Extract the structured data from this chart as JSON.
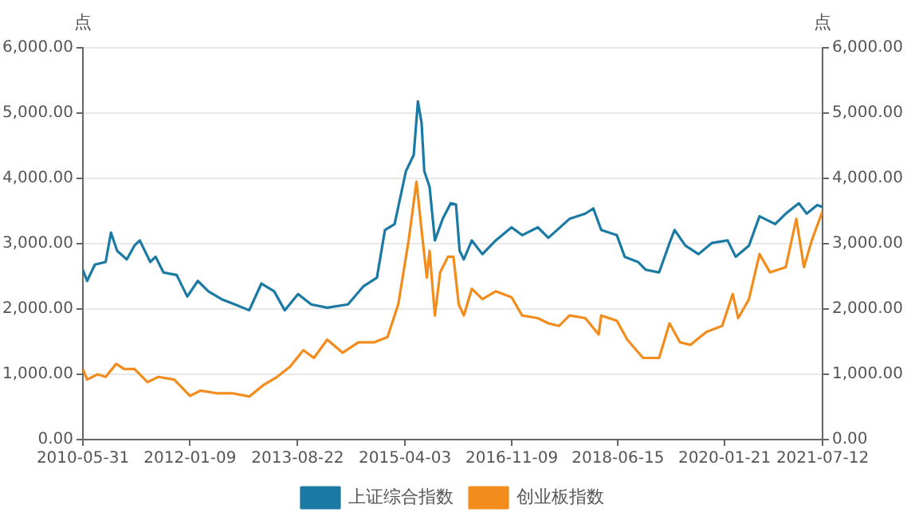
{
  "chart_data": {
    "type": "line",
    "ylabel": "点",
    "y2label": "点",
    "xlim": [
      "2010-05-31",
      "2021-07-12"
    ],
    "xticks": [
      "2010-05-31",
      "2012-01-09",
      "2013-08-22",
      "2015-04-03",
      "2016-11-09",
      "2018-06-15",
      "2020-01-21",
      "2021-07-12"
    ],
    "ylim": [
      0,
      6000
    ],
    "yticks": [
      {
        "value": 0,
        "label": "0.00"
      },
      {
        "value": 1000,
        "label": "1,000.00"
      },
      {
        "value": 2000,
        "label": "2,000.00"
      },
      {
        "value": 3000,
        "label": "3,000.00"
      },
      {
        "value": 4000,
        "label": "4,000.00"
      },
      {
        "value": 5000,
        "label": "5,000.00"
      },
      {
        "value": 6000,
        "label": "6,000.00"
      }
    ],
    "y2lim": [
      0,
      6000
    ],
    "y2ticks": [
      {
        "value": 0,
        "label": "0.00"
      },
      {
        "value": 1000,
        "label": "1,000.00"
      },
      {
        "value": 2000,
        "label": "2,000.00"
      },
      {
        "value": 3000,
        "label": "3,000.00"
      },
      {
        "value": 4000,
        "label": "4,000.00"
      },
      {
        "value": 5000,
        "label": "5,000.00"
      },
      {
        "value": 6000,
        "label": "6,000.00"
      }
    ],
    "grid": "y",
    "legend": "bottom",
    "marker": "none",
    "line_style": "solid",
    "series": [
      {
        "name": "上证综合指数",
        "color": "#1a7aa3",
        "x": [
          "2010-05-31",
          "2010-06-23",
          "2010-08-05",
          "2010-10-03",
          "2010-11-01",
          "2010-12-05",
          "2011-01-27",
          "2011-03-10",
          "2011-04-08",
          "2011-06-05",
          "2011-07-04",
          "2011-08-16",
          "2011-10-28",
          "2011-12-25",
          "2012-02-21",
          "2012-04-19",
          "2012-06-30",
          "2012-09-11",
          "2012-11-29",
          "2013-02-04",
          "2013-04-15",
          "2013-06-12",
          "2013-08-24",
          "2013-11-04",
          "2014-01-31",
          "2014-05-25",
          "2014-08-19",
          "2014-10-31",
          "2014-12-14",
          "2015-02-05",
          "2015-04-08",
          "2015-05-21",
          "2015-06-13",
          "2015-07-03",
          "2015-07-18",
          "2015-08-16",
          "2015-09-14",
          "2015-10-27",
          "2015-12-10",
          "2016-01-08",
          "2016-01-28",
          "2016-02-20",
          "2016-04-04",
          "2016-06-01",
          "2016-08-13",
          "2016-11-08",
          "2017-01-05",
          "2017-04-01",
          "2017-05-29",
          "2017-09-22",
          "2017-12-18",
          "2018-01-31",
          "2018-03-15",
          "2018-06-09",
          "2018-07-22",
          "2018-10-03",
          "2018-11-15",
          "2019-01-27",
          "2019-03-25",
          "2019-04-22",
          "2019-06-20",
          "2019-08-31",
          "2019-11-12",
          "2020-02-07",
          "2020-03-22",
          "2020-06-03",
          "2020-07-31",
          "2020-10-25",
          "2020-12-22",
          "2021-03-04",
          "2021-04-16",
          "2021-06-13",
          "2021-07-12"
        ],
        "values": [
          2600,
          2430,
          2680,
          2720,
          3170,
          2890,
          2760,
          2970,
          3050,
          2720,
          2800,
          2560,
          2520,
          2190,
          2430,
          2270,
          2150,
          2070,
          1980,
          2390,
          2270,
          1980,
          2230,
          2070,
          2020,
          2070,
          2350,
          2480,
          3210,
          3300,
          4110,
          4360,
          5180,
          4850,
          4110,
          3870,
          3050,
          3380,
          3620,
          3600,
          2890,
          2760,
          3050,
          2840,
          3050,
          3250,
          3130,
          3250,
          3090,
          3380,
          3460,
          3540,
          3210,
          3130,
          2800,
          2720,
          2600,
          2560,
          3010,
          3210,
          2970,
          2840,
          3010,
          3050,
          2800,
          2970,
          3420,
          3300,
          3460,
          3620,
          3460,
          3590,
          3560
        ]
      },
      {
        "name": "创业板指数",
        "color": "#f28c1c",
        "x": [
          "2010-05-31",
          "2010-06-23",
          "2010-08-20",
          "2010-10-03",
          "2010-11-30",
          "2011-01-12",
          "2011-03-10",
          "2011-05-21",
          "2011-07-19",
          "2011-10-14",
          "2012-01-09",
          "2012-03-07",
          "2012-06-01",
          "2012-08-27",
          "2012-11-29",
          "2013-02-18",
          "2013-05-01",
          "2013-07-12",
          "2013-09-22",
          "2013-11-19",
          "2014-01-31",
          "2014-04-26",
          "2014-07-21",
          "2014-10-17",
          "2014-12-28",
          "2015-02-25",
          "2015-04-23",
          "2015-06-05",
          "2015-07-03",
          "2015-08-01",
          "2015-08-16",
          "2015-09-14",
          "2015-10-13",
          "2015-11-25",
          "2015-12-25",
          "2016-01-23",
          "2016-02-20",
          "2016-04-04",
          "2016-06-01",
          "2016-08-13",
          "2016-11-08",
          "2017-01-05",
          "2017-04-01",
          "2017-05-29",
          "2017-07-26",
          "2017-09-22",
          "2017-12-18",
          "2018-03-01",
          "2018-03-15",
          "2018-06-09",
          "2018-08-05",
          "2018-10-31",
          "2019-01-27",
          "2019-03-25",
          "2019-05-21",
          "2019-07-18",
          "2019-10-14",
          "2020-01-08",
          "2020-03-06",
          "2020-04-05",
          "2020-06-03",
          "2020-07-31",
          "2020-09-27",
          "2020-12-22",
          "2021-02-18",
          "2021-04-01",
          "2021-05-14",
          "2021-07-12"
        ],
        "values": [
          1080,
          920,
          1000,
          960,
          1160,
          1080,
          1080,
          880,
          960,
          920,
          670,
          750,
          710,
          710,
          660,
          840,
          960,
          1120,
          1370,
          1250,
          1530,
          1330,
          1490,
          1490,
          1570,
          2070,
          3050,
          3950,
          3210,
          2480,
          2890,
          1900,
          2560,
          2800,
          2800,
          2070,
          1900,
          2310,
          2150,
          2270,
          2180,
          1900,
          1860,
          1780,
          1740,
          1900,
          1860,
          1610,
          1900,
          1820,
          1530,
          1250,
          1250,
          1780,
          1490,
          1450,
          1650,
          1740,
          2230,
          1860,
          2150,
          2840,
          2560,
          2640,
          3380,
          2640,
          3050,
          3500
        ]
      }
    ]
  }
}
